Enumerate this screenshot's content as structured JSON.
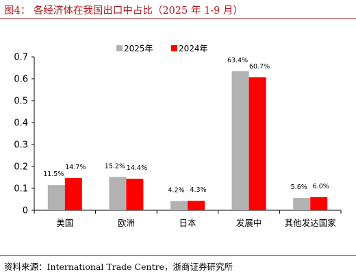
{
  "figure_title": "图4： 各经济体在我国出口中占比（2025 年 1-9 月）",
  "source": "资料来源：International Trade Centre，浙商证券研究所",
  "colors": {
    "accent": "#b0191e",
    "series_2025": "#b2b2b2",
    "series_2024": "#ff0000"
  },
  "chart_data": {
    "type": "bar",
    "title": "",
    "xlabel": "",
    "ylabel": "",
    "categories": [
      "美国",
      "欧洲",
      "日本",
      "发展中",
      "其他发达国家"
    ],
    "series": [
      {
        "name": "2025年",
        "values": [
          0.115,
          0.152,
          0.042,
          0.634,
          0.056
        ],
        "labels": [
          "11.5%",
          "15.2%",
          "4.2%",
          "63.4%",
          "5.6%"
        ]
      },
      {
        "name": "2024年",
        "values": [
          0.147,
          0.144,
          0.043,
          0.607,
          0.06
        ],
        "labels": [
          "14.7%",
          "14.4%",
          "4.3%",
          "60.7%",
          "6.0%"
        ]
      }
    ],
    "ylim": [
      0,
      0.7
    ],
    "yticks": [
      "0",
      "0.1",
      "0.2",
      "0.3",
      "0.4",
      "0.5",
      "0.6",
      "0.7"
    ],
    "grid": false,
    "legend": "top-center"
  }
}
